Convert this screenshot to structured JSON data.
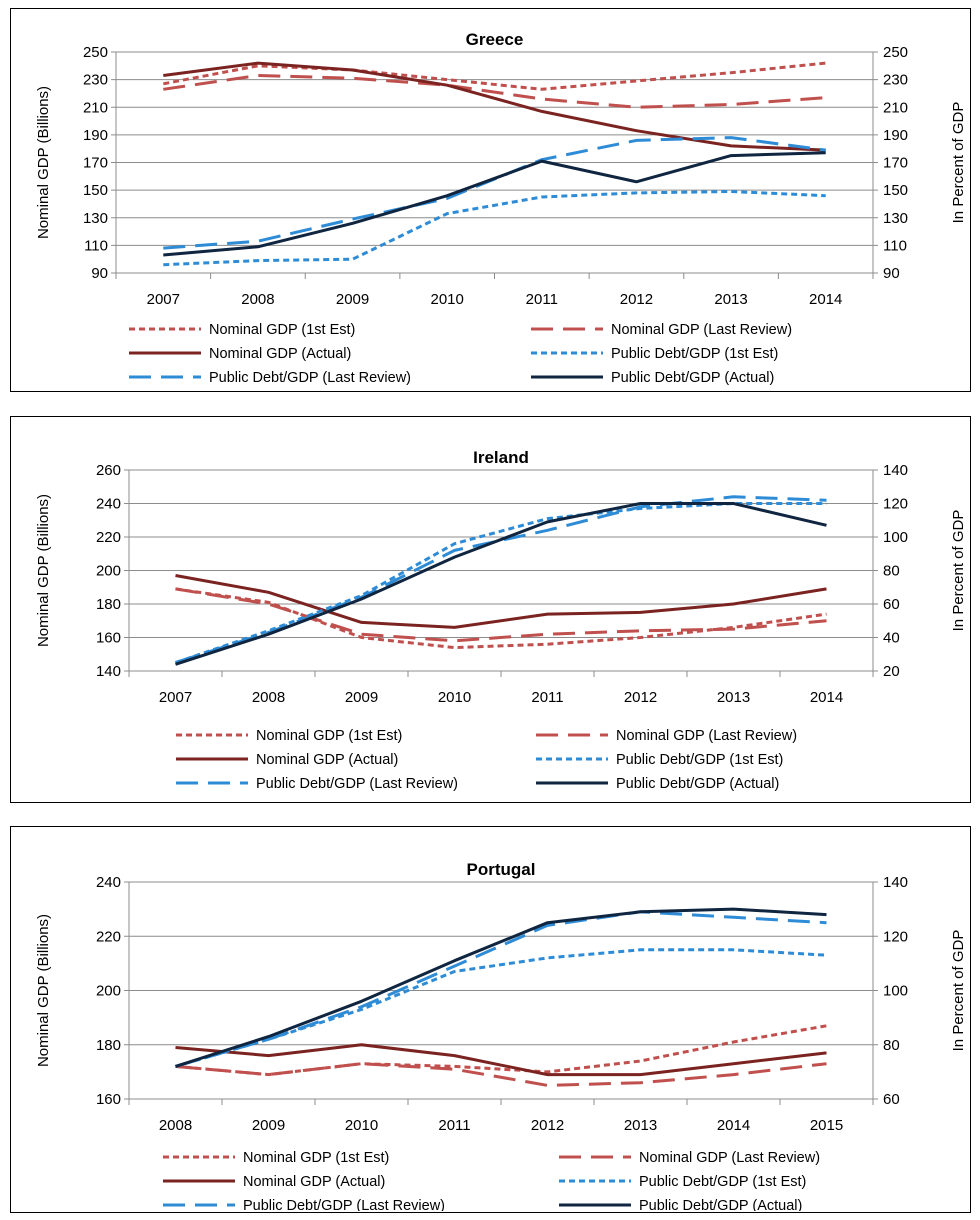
{
  "chart_data": [
    {
      "type": "line",
      "title": "Greece",
      "ylabel": "Nominal GDP (Billions)",
      "y2label": "In Percent of GDP",
      "categories": [
        "2007",
        "2008",
        "2009",
        "2010",
        "2011",
        "2012",
        "2013",
        "2014"
      ],
      "ylim": [
        90,
        250
      ],
      "yticks": [
        90,
        110,
        130,
        150,
        170,
        190,
        210,
        230,
        250
      ],
      "y2lim": [
        90,
        250
      ],
      "y2ticks": [
        90,
        110,
        130,
        150,
        170,
        190,
        210,
        230,
        250
      ],
      "grid": true,
      "legend_position": "bottom",
      "series": [
        {
          "name": "Nominal GDP (1st Est)",
          "axis": "left",
          "color": "#c0504d",
          "dash": "short",
          "values": [
            227,
            240,
            237,
            230,
            223,
            229,
            235,
            242
          ]
        },
        {
          "name": "Nominal GDP (Last Review)",
          "axis": "left",
          "color": "#c0504d",
          "dash": "long",
          "values": [
            223,
            233,
            231,
            226,
            216,
            210,
            212,
            217
          ]
        },
        {
          "name": "Nominal GDP (Actual)",
          "axis": "left",
          "color": "#7b2320",
          "dash": "solid",
          "values": [
            233,
            242,
            237,
            226,
            207,
            193,
            182,
            179
          ]
        },
        {
          "name": "Public Debt/GDP (1st Est)",
          "axis": "right",
          "color": "#2e8bd6",
          "dash": "short",
          "values": [
            96,
            99,
            100,
            133,
            145,
            148,
            149,
            146
          ]
        },
        {
          "name": "Public Debt/GDP (Last Review)",
          "axis": "right",
          "color": "#2e8bd6",
          "dash": "long",
          "values": [
            108,
            113,
            129,
            144,
            172,
            186,
            188,
            179
          ]
        },
        {
          "name": "Public Debt/GDP (Actual)",
          "axis": "right",
          "color": "#0f2540",
          "dash": "solid",
          "values": [
            103,
            109,
            126,
            146,
            171,
            156,
            175,
            177
          ]
        }
      ]
    },
    {
      "type": "line",
      "title": "Ireland",
      "ylabel": "Nominal GDP (Billions)",
      "y2label": "In Percent of GDP",
      "categories": [
        "2007",
        "2008",
        "2009",
        "2010",
        "2011",
        "2012",
        "2013",
        "2014"
      ],
      "ylim": [
        140,
        260
      ],
      "yticks": [
        140,
        160,
        180,
        200,
        220,
        240,
        260
      ],
      "y2lim": [
        20,
        140
      ],
      "y2ticks": [
        20,
        40,
        60,
        80,
        100,
        120,
        140
      ],
      "grid": true,
      "legend_position": "bottom",
      "series": [
        {
          "name": "Nominal GDP (1st Est)",
          "axis": "left",
          "color": "#c0504d",
          "dash": "short",
          "values": [
            189,
            181,
            160,
            154,
            156,
            160,
            166,
            174
          ]
        },
        {
          "name": "Nominal GDP (Last Review)",
          "axis": "left",
          "color": "#c0504d",
          "dash": "long",
          "values": [
            189,
            180,
            162,
            158,
            162,
            164,
            165,
            170
          ]
        },
        {
          "name": "Nominal GDP (Actual)",
          "axis": "left",
          "color": "#7b2320",
          "dash": "solid",
          "values": [
            197,
            187,
            169,
            166,
            174,
            175,
            180,
            189
          ]
        },
        {
          "name": "Public Debt/GDP (1st Est)",
          "axis": "right",
          "color": "#2e8bd6",
          "dash": "short",
          "values": [
            25,
            44,
            65,
            96,
            111,
            117,
            120,
            120
          ]
        },
        {
          "name": "Public Debt/GDP (Last Review)",
          "axis": "right",
          "color": "#2e8bd6",
          "dash": "long",
          "values": [
            25,
            43,
            64,
            92,
            104,
            118,
            124,
            122
          ]
        },
        {
          "name": "Public Debt/GDP (Actual)",
          "axis": "right",
          "color": "#0f2540",
          "dash": "solid",
          "values": [
            24,
            42,
            63,
            88,
            109,
            120,
            120,
            107
          ]
        }
      ]
    },
    {
      "type": "line",
      "title": "Portugal",
      "ylabel": "Nominal GDP (Billions)",
      "y2label": "In Percent of GDP",
      "categories": [
        "2008",
        "2009",
        "2010",
        "2011",
        "2012",
        "2013",
        "2014",
        "2015"
      ],
      "ylim": [
        160,
        240
      ],
      "yticks": [
        160,
        180,
        200,
        220,
        240
      ],
      "y2lim": [
        60,
        140
      ],
      "y2ticks": [
        60,
        80,
        100,
        120,
        140
      ],
      "grid": true,
      "legend_position": "bottom",
      "series": [
        {
          "name": "Nominal GDP (1st Est)",
          "axis": "left",
          "color": "#c0504d",
          "dash": "short",
          "values": [
            172,
            169,
            173,
            172,
            170,
            174,
            181,
            187
          ]
        },
        {
          "name": "Nominal GDP (Last Review)",
          "axis": "left",
          "color": "#c0504d",
          "dash": "long",
          "values": [
            172,
            169,
            173,
            171,
            165,
            166,
            169,
            173
          ]
        },
        {
          "name": "Nominal GDP (Actual)",
          "axis": "left",
          "color": "#7b2320",
          "dash": "solid",
          "values": [
            179,
            176,
            180,
            176,
            169,
            169,
            173,
            177
          ]
        },
        {
          "name": "Public Debt/GDP (1st Est)",
          "axis": "right",
          "color": "#2e8bd6",
          "dash": "short",
          "values": [
            72,
            82,
            93,
            107,
            112,
            115,
            115,
            113
          ]
        },
        {
          "name": "Public Debt/GDP (Last Review)",
          "axis": "right",
          "color": "#2e8bd6",
          "dash": "long",
          "values": [
            72,
            82,
            94,
            109,
            124,
            129,
            127,
            125
          ]
        },
        {
          "name": "Public Debt/GDP (Actual)",
          "axis": "right",
          "color": "#0f2540",
          "dash": "solid",
          "values": [
            72,
            83,
            96,
            111,
            125,
            129,
            130,
            128
          ]
        }
      ]
    }
  ]
}
